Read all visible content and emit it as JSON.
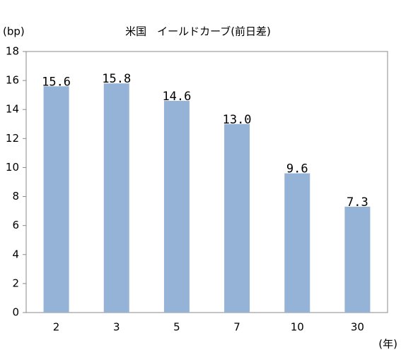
{
  "chart_data": {
    "type": "bar",
    "title": "米国　イールドカーブ(前日差)",
    "y_label": "(bp)",
    "x_label": "(年)",
    "categories": [
      "2",
      "3",
      "5",
      "7",
      "10",
      "30"
    ],
    "values": [
      15.6,
      15.8,
      14.6,
      13.0,
      9.6,
      7.3
    ],
    "value_labels": [
      "15.6",
      "15.8",
      "14.6",
      "13.0",
      "9.6",
      "7.3"
    ],
    "color": "#95b3d7",
    "ylim": [
      0,
      18
    ],
    "yticks": [
      0,
      2,
      4,
      6,
      8,
      10,
      12,
      14,
      16,
      18
    ],
    "grid": false
  }
}
